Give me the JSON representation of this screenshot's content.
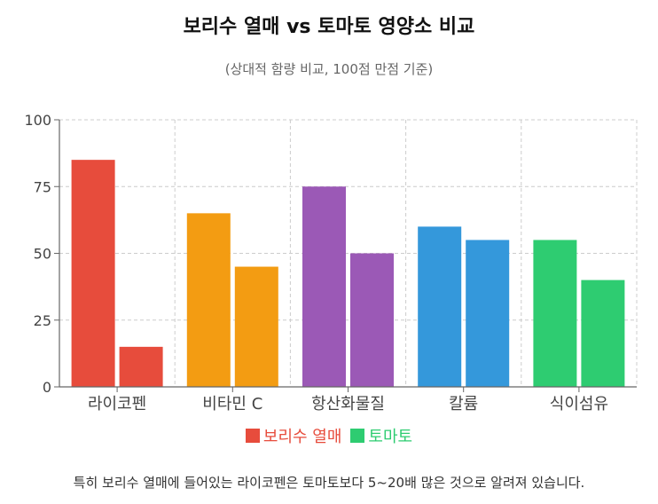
{
  "chart_data": {
    "type": "bar",
    "title": "보리수 열매 vs 토마토 영양소 비교",
    "subtitle": "(상대적 함량 비교, 100점 만점 기준)",
    "categories": [
      "라이코펜",
      "비타민 C",
      "항산화물질",
      "칼륨",
      "식이섬유"
    ],
    "series": [
      {
        "name": "보리수 열매",
        "values": [
          85,
          65,
          75,
          60,
          55
        ]
      },
      {
        "name": "토마토",
        "values": [
          15,
          45,
          50,
          55,
          40
        ]
      }
    ],
    "category_colors": [
      "#e74c3c",
      "#f39c12",
      "#9b59b6",
      "#3498db",
      "#2ecc71"
    ],
    "legend_colors": [
      "#e74c3c",
      "#2ecc71"
    ],
    "ylim": [
      0,
      100
    ],
    "yticks": [
      0,
      25,
      50,
      75,
      100
    ],
    "grid": true,
    "legend_position": "bottom"
  },
  "footnote": "특히 보리수 열매에 들어있는 라이코펜은 토마토보다 5~20배 많은 것으로 알려져 있습니다."
}
